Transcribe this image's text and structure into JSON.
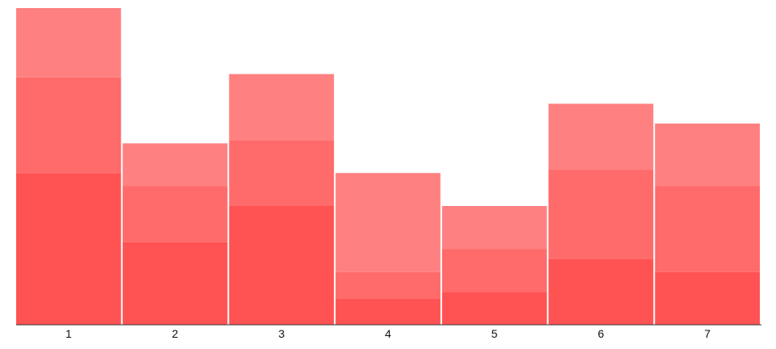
{
  "chart_data": {
    "type": "bar",
    "stacked": true,
    "categories": [
      "1",
      "2",
      "3",
      "4",
      "5",
      "6",
      "7"
    ],
    "series": [
      {
        "values": [
          46,
          25,
          36,
          8,
          10,
          20,
          16
        ]
      },
      {
        "values": [
          29,
          17,
          20,
          8,
          13,
          27,
          26
        ]
      },
      {
        "values": [
          21,
          13,
          20,
          30,
          13,
          20,
          19
        ]
      }
    ],
    "colors": [
      "#ff5252",
      "#ff6a6a",
      "#ff8080"
    ],
    "ylim": [
      0,
      96
    ],
    "grid": false,
    "legend": "none"
  }
}
